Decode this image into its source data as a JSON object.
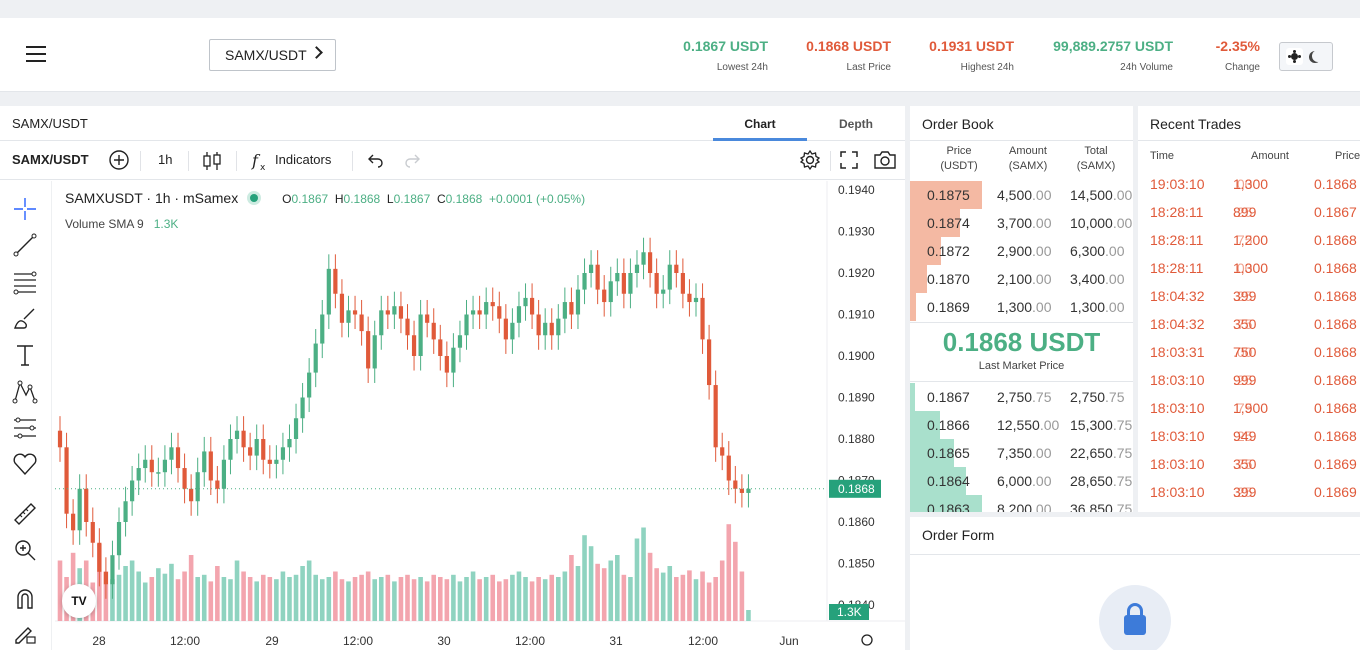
{
  "header": {
    "pair": "SAMX/USDT",
    "stats": [
      {
        "value": "0.1867 USDT",
        "label": "Lowest 24h",
        "color": "#4caf84"
      },
      {
        "value": "0.1868 USDT",
        "label": "Last Price",
        "color": "#e05a3a"
      },
      {
        "value": "0.1931 USDT",
        "label": "Highest 24h",
        "color": "#e05a3a"
      },
      {
        "value": "99,889.2757 USDT",
        "label": "24h Volume",
        "color": "#4caf84"
      },
      {
        "value": "-2.35%",
        "label": "Change",
        "color": "#e05a3a"
      }
    ]
  },
  "chart_panel": {
    "title": "SAMX/USDT",
    "tabs": [
      "Chart",
      "Depth"
    ],
    "active_tab": "Chart",
    "toolbar": {
      "symbol": "SAMX/USDT",
      "interval": "1h",
      "indicators": "Indicators"
    },
    "legend": {
      "symbol": "SAMXUSDT · 1h · mSamex",
      "o_label": "O",
      "o": "0.1867",
      "h_label": "H",
      "h": "0.1868",
      "l_label": "L",
      "l": "0.1867",
      "c_label": "C",
      "c": "0.1868",
      "change": "+0.0001 (+0.05%)"
    },
    "volume_legend": {
      "label": "Volume SMA 9",
      "value": "1.3K"
    },
    "logo_text": "TV"
  },
  "chart_data": {
    "type": "candlestick",
    "y_ticks": [
      "0.1940",
      "0.1930",
      "0.1920",
      "0.1910",
      "0.1900",
      "0.1890",
      "0.1880",
      "0.1870",
      "0.1860",
      "0.1850",
      "0.1840"
    ],
    "ylim": [
      0.1838,
      0.1943
    ],
    "x_ticks": [
      "28",
      "12:00",
      "29",
      "12:00",
      "30",
      "12:00",
      "31",
      "12:00",
      "Jun"
    ],
    "last_price_label": "0.1868",
    "last_price": 0.1868,
    "volume_label": "1.3K",
    "up_color": "#4caf84",
    "down_color": "#e05a3a",
    "closes": [
      0.1878,
      0.1862,
      0.1858,
      0.1868,
      0.186,
      0.1855,
      0.1848,
      0.1845,
      0.1852,
      0.186,
      0.1865,
      0.187,
      0.1873,
      0.1875,
      0.1872,
      0.1872,
      0.1875,
      0.1878,
      0.1873,
      0.1868,
      0.1865,
      0.1872,
      0.1877,
      0.187,
      0.1868,
      0.1875,
      0.188,
      0.1882,
      0.1878,
      0.1876,
      0.188,
      0.1875,
      0.1874,
      0.1875,
      0.1878,
      0.188,
      0.1885,
      0.189,
      0.1896,
      0.1903,
      0.191,
      0.1921,
      0.1915,
      0.1908,
      0.1911,
      0.191,
      0.1906,
      0.1897,
      0.1905,
      0.1911,
      0.191,
      0.1912,
      0.1909,
      0.1905,
      0.19,
      0.191,
      0.1908,
      0.1904,
      0.19,
      0.1896,
      0.1902,
      0.1905,
      0.191,
      0.1911,
      0.191,
      0.1913,
      0.1912,
      0.1909,
      0.1904,
      0.1908,
      0.1912,
      0.1914,
      0.191,
      0.1905,
      0.1908,
      0.1905,
      0.1909,
      0.1913,
      0.191,
      0.1916,
      0.192,
      0.1922,
      0.1916,
      0.1913,
      0.1918,
      0.192,
      0.1915,
      0.192,
      0.1922,
      0.1925,
      0.192,
      0.1915,
      0.1916,
      0.1922,
      0.192,
      0.1915,
      0.1913,
      0.1914,
      0.1904,
      0.1893,
      0.1878,
      0.1876,
      0.187,
      0.1868,
      0.1867,
      0.1868
    ],
    "volumes": [
      0.55,
      0.4,
      0.62,
      0.48,
      0.55,
      0.35,
      0.7,
      0.45,
      0.38,
      0.42,
      0.5,
      0.55,
      0.45,
      0.35,
      0.4,
      0.48,
      0.43,
      0.52,
      0.38,
      0.45,
      0.6,
      0.4,
      0.42,
      0.36,
      0.5,
      0.4,
      0.38,
      0.55,
      0.45,
      0.4,
      0.36,
      0.42,
      0.4,
      0.38,
      0.45,
      0.4,
      0.42,
      0.5,
      0.55,
      0.42,
      0.38,
      0.4,
      0.45,
      0.38,
      0.36,
      0.4,
      0.42,
      0.45,
      0.38,
      0.4,
      0.42,
      0.36,
      0.4,
      0.42,
      0.38,
      0.4,
      0.36,
      0.42,
      0.4,
      0.38,
      0.42,
      0.36,
      0.4,
      0.45,
      0.38,
      0.4,
      0.42,
      0.36,
      0.38,
      0.42,
      0.45,
      0.4,
      0.36,
      0.4,
      0.38,
      0.42,
      0.4,
      0.45,
      0.6,
      0.5,
      0.78,
      0.68,
      0.52,
      0.48,
      0.55,
      0.6,
      0.42,
      0.4,
      0.75,
      0.85,
      0.62,
      0.48,
      0.44,
      0.5,
      0.4,
      0.42,
      0.46,
      0.38,
      0.45,
      0.35,
      0.4,
      0.55,
      0.88,
      0.72,
      0.45,
      0.1
    ]
  },
  "order_book": {
    "title": "Order Book",
    "columns": [
      "Price (USDT)",
      "Amount (SAMX)",
      "Total (SAMX)"
    ],
    "asks": [
      {
        "price": "0.1875",
        "amount": "4,500",
        "amount_dec": ".00",
        "total": "14,500",
        "total_dec": ".00",
        "depth": 1.0
      },
      {
        "price": "0.1874",
        "amount": "3,700",
        "amount_dec": ".00",
        "total": "10,000",
        "total_dec": ".00",
        "depth": 0.69
      },
      {
        "price": "0.1872",
        "amount": "2,900",
        "amount_dec": ".00",
        "total": "6,300",
        "total_dec": ".00",
        "depth": 0.43
      },
      {
        "price": "0.1870",
        "amount": "2,100",
        "amount_dec": ".00",
        "total": "3,400",
        "total_dec": ".00",
        "depth": 0.23
      },
      {
        "price": "0.1869",
        "amount": "1,300",
        "amount_dec": ".00",
        "total": "1,300",
        "total_dec": ".00",
        "depth": 0.09
      }
    ],
    "last_price": "0.1868 USDT",
    "last_price_label": "Last Market Price",
    "bids": [
      {
        "price": "0.1867",
        "amount": "2,750",
        "amount_dec": ".75",
        "total": "2,750",
        "total_dec": ".75",
        "depth": 0.075
      },
      {
        "price": "0.1866",
        "amount": "12,550",
        "amount_dec": ".00",
        "total": "15,300",
        "total_dec": ".75",
        "depth": 0.42
      },
      {
        "price": "0.1865",
        "amount": "7,350",
        "amount_dec": ".00",
        "total": "22,650",
        "total_dec": ".75",
        "depth": 0.61
      },
      {
        "price": "0.1864",
        "amount": "6,000",
        "amount_dec": ".00",
        "total": "28,650",
        "total_dec": ".75",
        "depth": 0.78
      },
      {
        "price": "0.1863",
        "amount": "8,200",
        "amount_dec": ".00",
        "total": "36,850",
        "total_dec": ".75",
        "depth": 1.0
      }
    ]
  },
  "recent_trades": {
    "title": "Recent Trades",
    "columns": [
      "Time",
      "Amount",
      "Price"
    ],
    "trades": [
      {
        "time": "19:03:10",
        "amount": "1,300",
        "amount_dec": ".00",
        "price": "0.1868",
        "side": "sell"
      },
      {
        "time": "18:28:11",
        "amount": "899",
        "amount_dec": ".25",
        "price": "0.1867",
        "side": "sell"
      },
      {
        "time": "18:28:11",
        "amount": "1,200",
        "amount_dec": ".75",
        "price": "0.1868",
        "side": "sell"
      },
      {
        "time": "18:28:11",
        "amount": "1,300",
        "amount_dec": ".00",
        "price": "0.1868",
        "side": "sell"
      },
      {
        "time": "18:04:32",
        "amount": "399",
        "amount_dec": ".25",
        "price": "0.1868",
        "side": "sell"
      },
      {
        "time": "18:04:32",
        "amount": "350",
        "amount_dec": ".75",
        "price": "0.1868",
        "side": "sell"
      },
      {
        "time": "18:03:31",
        "amount": "750",
        "amount_dec": ".00",
        "price": "0.1868",
        "side": "sell"
      },
      {
        "time": "18:03:10",
        "amount": "999",
        "amount_dec": ".25",
        "price": "0.1868",
        "side": "sell"
      },
      {
        "time": "18:03:10",
        "amount": "1,900",
        "amount_dec": ".75",
        "price": "0.1868",
        "side": "sell"
      },
      {
        "time": "18:03:10",
        "amount": "949",
        "amount_dec": ".25",
        "price": "0.1868",
        "side": "sell"
      },
      {
        "time": "18:03:10",
        "amount": "350",
        "amount_dec": ".75",
        "price": "0.1869",
        "side": "sell"
      },
      {
        "time": "18:03:10",
        "amount": "399",
        "amount_dec": ".25",
        "price": "0.1869",
        "side": "sell"
      }
    ]
  },
  "order_form": {
    "title": "Order Form"
  },
  "icons": [
    "menu-icon",
    "chevron-right-icon",
    "sun-icon",
    "moon-icon",
    "add-symbol-icon",
    "candles-icon",
    "fx-icon",
    "undo-icon",
    "redo-icon",
    "settings-icon",
    "fullscreen-icon",
    "camera-icon",
    "crosshair-icon",
    "trend-line-icon",
    "fib-icon",
    "brush-icon",
    "text-icon",
    "pattern-icon",
    "prediction-icon",
    "heart-icon",
    "ruler-icon",
    "zoom-icon",
    "magnet-icon",
    "lock-draw-icon",
    "lock-icon"
  ]
}
